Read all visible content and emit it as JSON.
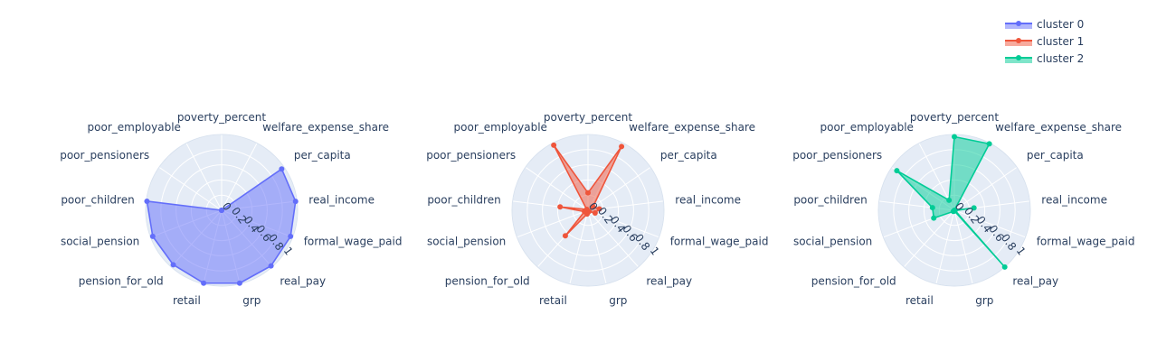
{
  "chart_data": {
    "type": "radar",
    "grid": true,
    "legend_position": "top-right",
    "radial_range": [
      0,
      1
    ],
    "radial_ticks": [
      "0",
      "0.2",
      "0.4",
      "0.6",
      "0.8",
      "1"
    ],
    "axes": [
      "poverty_percent",
      "welfare_expense_share",
      "per_capita",
      "real_income",
      "formal_wage_paid",
      "real_pay",
      "grp",
      "retail",
      "pension_for_old",
      "social_pension",
      "poor_children",
      "poor_pensioners",
      "poor_employable"
    ],
    "series": [
      {
        "name": "cluster 0",
        "color": "#636efa",
        "values": [
          0.0,
          0.0,
          0.96,
          0.98,
          0.97,
          0.98,
          0.99,
          0.99,
          0.96,
          0.97,
          0.99,
          0.0,
          0.0
        ]
      },
      {
        "name": "cluster 1",
        "color": "#ef553b",
        "values": [
          0.23,
          0.95,
          0.08,
          0.15,
          0.1,
          0.02,
          0.02,
          0.05,
          0.45,
          0.05,
          0.37,
          0.02,
          0.97
        ]
      },
      {
        "name": "cluster 2",
        "color": "#00cc96",
        "values": [
          0.97,
          0.99,
          0.0,
          0.26,
          0.01,
          1.0,
          0.01,
          0.01,
          0.02,
          0.29,
          0.29,
          0.92,
          0.15
        ]
      }
    ]
  }
}
